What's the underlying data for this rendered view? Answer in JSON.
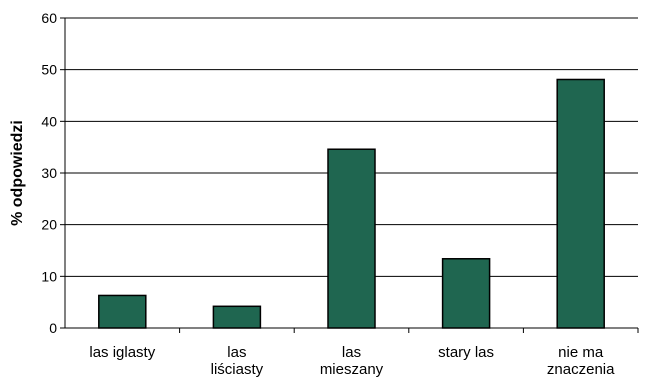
{
  "chart_data": {
    "type": "bar",
    "title": "",
    "xlabel": "",
    "ylabel": "% odpowiedzi",
    "ylim": [
      0,
      60
    ],
    "yticks": [
      0,
      10,
      20,
      30,
      40,
      50,
      60
    ],
    "grid": true,
    "categories": [
      [
        "las iglasty"
      ],
      [
        "las",
        "liściasty"
      ],
      [
        "las",
        "mieszany"
      ],
      [
        "stary las"
      ],
      [
        "nie ma",
        "znaczenia"
      ]
    ],
    "values": [
      6.3,
      4.2,
      34.6,
      13.4,
      48.1
    ],
    "bar_color": "#1f6650"
  }
}
